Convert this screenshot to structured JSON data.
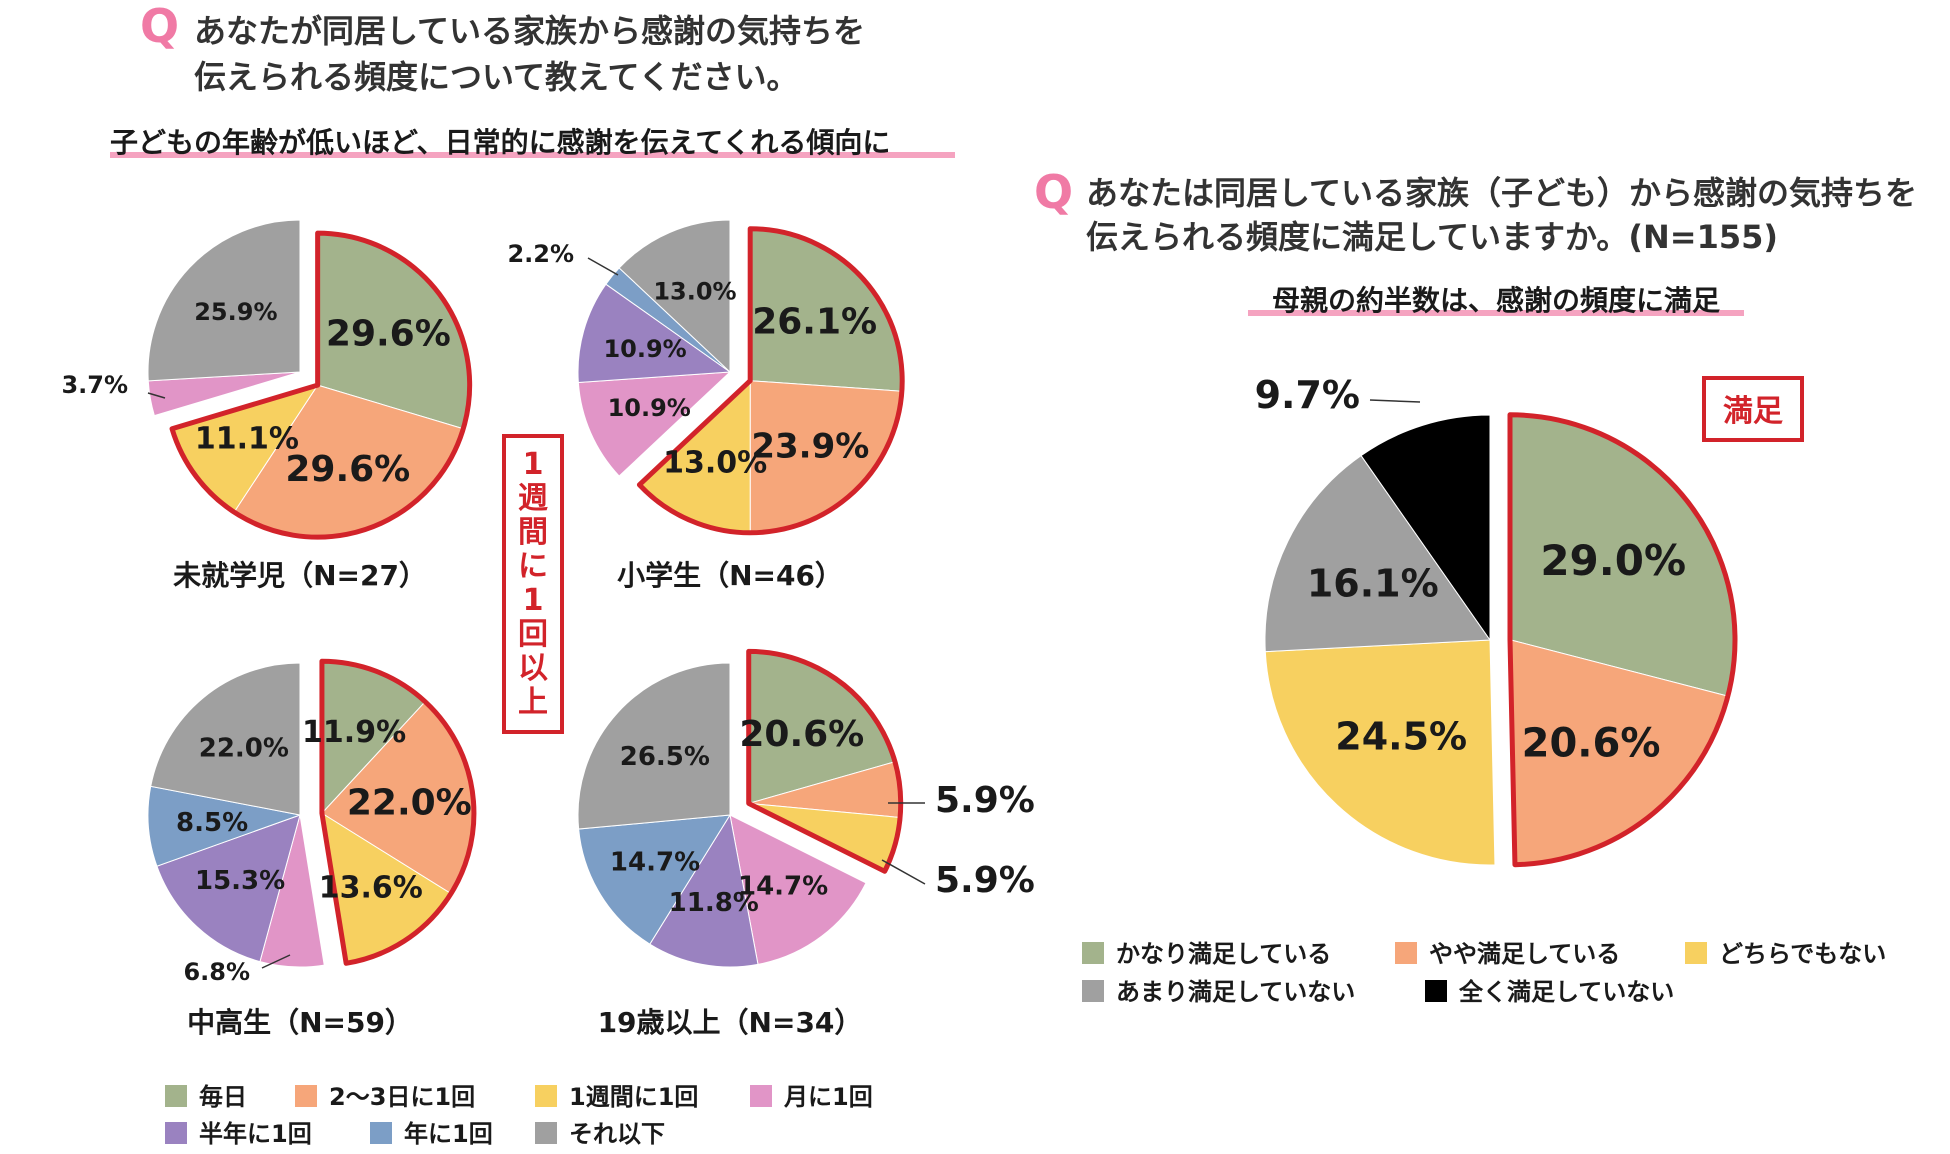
{
  "left": {
    "question": {
      "mark": "Q",
      "line1": "あなたが同居している家族から感謝の気持ちを",
      "line2": "伝えられる頻度について教えてください。"
    },
    "headline": "子どもの年齢が低いほど、日常的に感謝を伝えてくれる傾向に",
    "callout": [
      "1",
      "週",
      "間",
      "に",
      "1",
      "回",
      "以",
      "上"
    ]
  },
  "right": {
    "question": {
      "mark": "Q",
      "line1": "あなたは同居している家族（子ども）から感謝の気持ちを",
      "line2": "伝えられる頻度に満足していますか。(N=155)"
    },
    "headline": "母親の約半数は、感謝の頻度に満足",
    "callout": "満足"
  },
  "colors": {
    "accent_red": "#d2232a",
    "underline_pink": "#f5a3c0",
    "q_pink": "#f07aa5"
  },
  "chart_data": [
    {
      "type": "pie",
      "title": "未就学児（N=27）",
      "categories": [
        "毎日",
        "2～3日に1回",
        "1週間に1回",
        "月に1回",
        "半年に1回",
        "年に1回",
        "それ以下"
      ],
      "values": [
        29.6,
        29.6,
        11.1,
        3.7,
        0,
        0,
        25.9
      ],
      "labels": [
        "29.6%",
        "29.6%",
        "11.1%",
        "3.7%",
        "",
        "",
        "25.9%"
      ],
      "colors": [
        "#a3b38c",
        "#f6a67a",
        "#f7d060",
        "#e195c7",
        "#9a82c0",
        "#7c9ec6",
        "#a0a0a0"
      ],
      "highlight_first_n": 3
    },
    {
      "type": "pie",
      "title": "小学生（N=46）",
      "categories": [
        "毎日",
        "2～3日に1回",
        "1週間に1回",
        "月に1回",
        "半年に1回",
        "年に1回",
        "それ以下"
      ],
      "values": [
        26.1,
        23.9,
        13.0,
        10.9,
        10.9,
        2.2,
        13.0
      ],
      "labels": [
        "26.1%",
        "23.9%",
        "13.0%",
        "10.9%",
        "10.9%",
        "2.2%",
        "13.0%"
      ],
      "colors": [
        "#a3b38c",
        "#f6a67a",
        "#f7d060",
        "#e195c7",
        "#9a82c0",
        "#7c9ec6",
        "#a0a0a0"
      ],
      "highlight_first_n": 3
    },
    {
      "type": "pie",
      "title": "中高生（N=59）",
      "categories": [
        "毎日",
        "2～3日に1回",
        "1週間に1回",
        "月に1回",
        "半年に1回",
        "年に1回",
        "それ以下"
      ],
      "values": [
        11.9,
        22.0,
        13.6,
        6.8,
        15.3,
        8.5,
        22.0
      ],
      "labels": [
        "11.9%",
        "22.0%",
        "13.6%",
        "6.8%",
        "15.3%",
        "8.5%",
        "22.0%"
      ],
      "colors": [
        "#a3b38c",
        "#f6a67a",
        "#f7d060",
        "#e195c7",
        "#9a82c0",
        "#7c9ec6",
        "#a0a0a0"
      ],
      "highlight_first_n": 3
    },
    {
      "type": "pie",
      "title": "19歳以上（N=34）",
      "categories": [
        "毎日",
        "2～3日に1回",
        "1週間に1回",
        "月に1回",
        "半年に1回",
        "年に1回",
        "それ以下"
      ],
      "values": [
        20.6,
        5.9,
        5.9,
        14.7,
        11.8,
        14.7,
        26.5
      ],
      "labels": [
        "20.6%",
        "5.9%",
        "5.9%",
        "14.7%",
        "11.8%",
        "14.7%",
        "26.5%"
      ],
      "colors": [
        "#a3b38c",
        "#f6a67a",
        "#f7d060",
        "#e195c7",
        "#9a82c0",
        "#7c9ec6",
        "#a0a0a0"
      ],
      "highlight_first_n": 3
    },
    {
      "type": "pie",
      "title": "",
      "categories": [
        "かなり満足している",
        "やや満足している",
        "どちらでもない",
        "あまり満足していない",
        "全く満足していない"
      ],
      "values": [
        29.0,
        20.6,
        24.5,
        16.1,
        9.7
      ],
      "labels": [
        "29.0%",
        "20.6%",
        "24.5%",
        "16.1%",
        "9.7%"
      ],
      "colors": [
        "#a3b38c",
        "#f6a67a",
        "#f7d060",
        "#a0a0a0",
        "#000000"
      ],
      "highlight_first_n": 2
    }
  ]
}
